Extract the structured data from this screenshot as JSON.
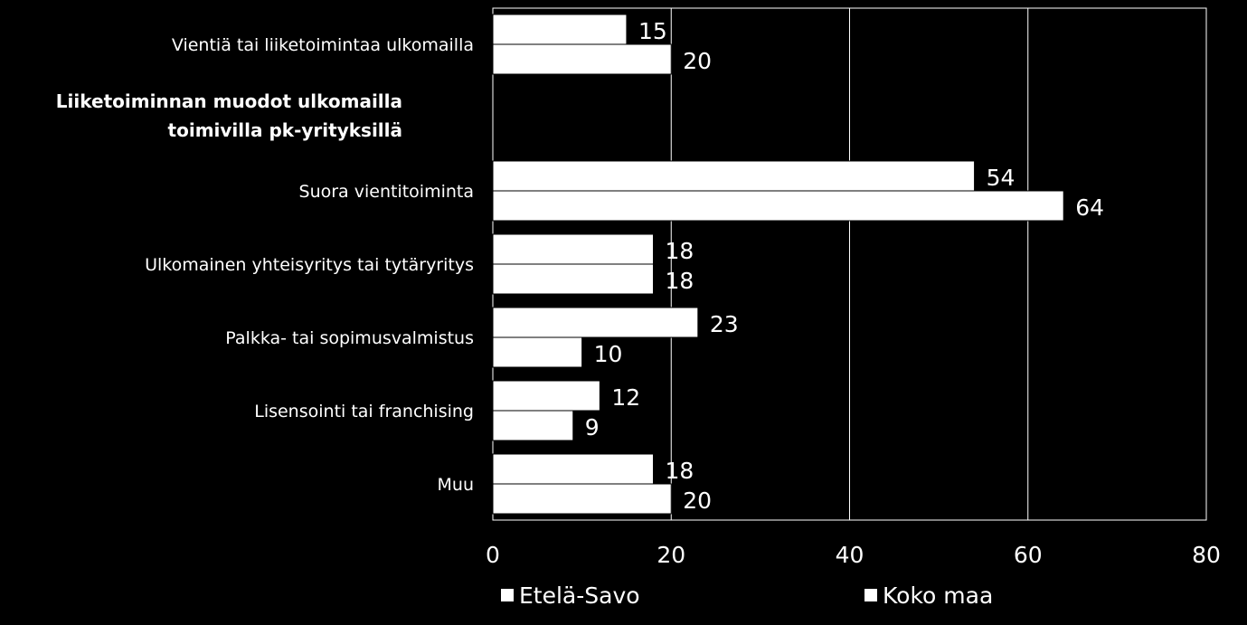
{
  "chart_data": {
    "type": "bar",
    "orientation": "horizontal",
    "categories": [
      "Vientiä tai liiketoimintaa ulkomailla",
      "Suora vientitoiminta",
      "Ulkomainen yhteisyritys tai tytäryritys",
      "Palkka- tai sopimusvalmistus",
      "Lisensointi tai franchising",
      "Muu"
    ],
    "section_title_line1": "Liiketoiminnan muodot ulkomailla",
    "section_title_line2": "toimivilla pk-yrityksillä",
    "series": [
      {
        "name": "Etelä-Savo",
        "values": [
          15,
          54,
          18,
          23,
          12,
          18
        ]
      },
      {
        "name": "Koko maa",
        "values": [
          20,
          64,
          18,
          10,
          9,
          20
        ]
      }
    ],
    "xlim": [
      0,
      80
    ],
    "xticks": [
      "0",
      "20",
      "40",
      "60",
      "80"
    ],
    "grid": true,
    "legend_position": "bottom",
    "bar_color": "#ffffff",
    "background_color": "#000000"
  }
}
